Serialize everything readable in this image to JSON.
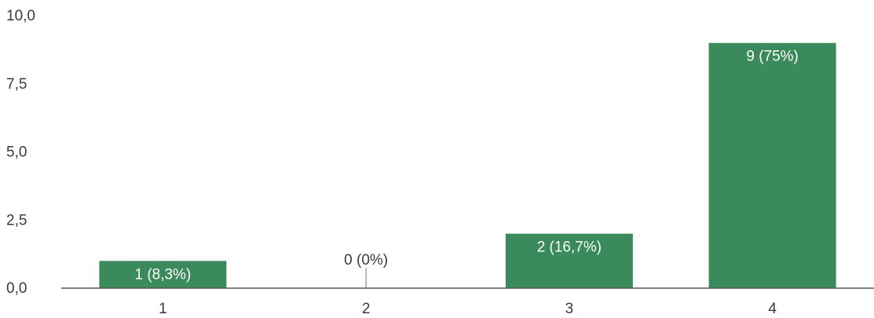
{
  "chart_data": {
    "type": "bar",
    "categories": [
      "1",
      "2",
      "3",
      "4"
    ],
    "values": [
      1,
      0,
      2,
      9
    ],
    "data_labels": [
      "1 (8,3%)",
      "0 (0%)",
      "2 (16,7%)",
      "9 (75%)"
    ],
    "y_ticks": [
      "0,0",
      "2,5",
      "5,0",
      "7,5",
      "10,0"
    ],
    "y_tick_values": [
      0,
      2.5,
      5,
      7.5,
      10
    ],
    "ylim": [
      0,
      10
    ],
    "grid": false,
    "bar_color": "#3a8a5b",
    "inside_label_color": "#ffffff",
    "outside_label_color": "#3a3a3a",
    "axis_color": "#555555"
  }
}
